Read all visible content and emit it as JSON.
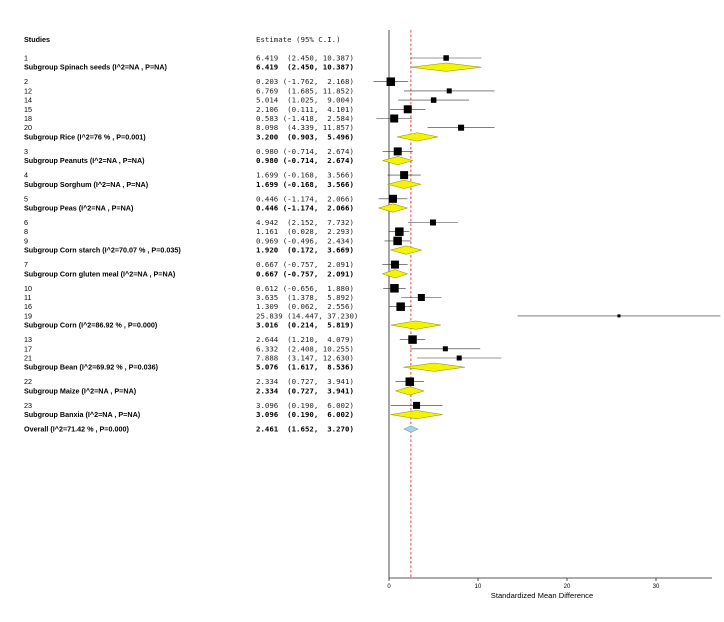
{
  "header": {
    "studies_label": "Studies",
    "estimate_label": "Estimate (95% C.I.)"
  },
  "chart_data": {
    "type": "forest",
    "xlabel": "Standardized Mean Difference",
    "xlim": [
      0,
      30
    ],
    "xticks": [
      0,
      10,
      20,
      30
    ],
    "xtick_labels": [
      "0",
      "10",
      "20",
      "30"
    ],
    "null_line": 0,
    "pooled_line": 2.461,
    "colors": {
      "square": "#000000",
      "diamond_fill": "#f4f400",
      "diamond_stroke": "#8a8a00",
      "overall_fill": "#a9d3e6",
      "overall_stroke": "#5f8ea3",
      "pooled_line": "#e01818"
    },
    "rows": [
      {
        "type": "study",
        "label": "1",
        "est": 6.419,
        "lo": 2.45,
        "hi": 10.387,
        "text": "6.419  (2.450, 10.387)",
        "size": 5.5
      },
      {
        "type": "subgroup",
        "label": "Subgroup Spinach seeds (I^2=NA , P=NA)",
        "est": 6.419,
        "lo": 2.45,
        "hi": 10.387,
        "text": "6.419  (2.450, 10.387)"
      },
      {
        "type": "gap"
      },
      {
        "type": "study",
        "label": "2",
        "est": 0.203,
        "lo": -1.762,
        "hi": 2.168,
        "text": "0.203 (-1.762,  2.168)",
        "size": 8.5
      },
      {
        "type": "study",
        "label": "12",
        "est": 6.769,
        "lo": 1.685,
        "hi": 11.852,
        "text": "6.769  (1.685, 11.852)",
        "size": 5
      },
      {
        "type": "study",
        "label": "14",
        "est": 5.014,
        "lo": 1.025,
        "hi": 9.004,
        "text": "5.014  (1.025,  9.004)",
        "size": 5.5
      },
      {
        "type": "study",
        "label": "15",
        "est": 2.106,
        "lo": 0.111,
        "hi": 4.101,
        "text": "2.106  (0.111,  4.101)",
        "size": 8
      },
      {
        "type": "study",
        "label": "18",
        "est": 0.583,
        "lo": -1.418,
        "hi": 2.584,
        "text": "0.583 (-1.418,  2.584)",
        "size": 8
      },
      {
        "type": "study",
        "label": "20",
        "est": 8.098,
        "lo": 4.339,
        "hi": 11.857,
        "text": "8.098  (4.339, 11.857)",
        "size": 6
      },
      {
        "type": "subgroup",
        "label": "Subgroup Rice (I^2=76 % , P=0.001)",
        "est": 3.2,
        "lo": 0.903,
        "hi": 5.496,
        "text": "3.200  (0.903,  5.496)"
      },
      {
        "type": "gap"
      },
      {
        "type": "study",
        "label": "3",
        "est": 0.98,
        "lo": -0.714,
        "hi": 2.674,
        "text": "0.980 (-0.714,  2.674)",
        "size": 8
      },
      {
        "type": "subgroup",
        "label": "Subgroup Peanuts (I^2=NA , P=NA)",
        "est": 0.98,
        "lo": -0.714,
        "hi": 2.674,
        "text": "0.980 (-0.714,  2.674)"
      },
      {
        "type": "gap"
      },
      {
        "type": "study",
        "label": "4",
        "est": 1.699,
        "lo": -0.168,
        "hi": 3.566,
        "text": "1.699 (-0.168,  3.566)",
        "size": 8
      },
      {
        "type": "subgroup",
        "label": "Subgroup Sorghum (I^2=NA , P=NA)",
        "est": 1.699,
        "lo": -0.168,
        "hi": 3.566,
        "text": "1.699 (-0.168,  3.566)"
      },
      {
        "type": "gap"
      },
      {
        "type": "study",
        "label": "5",
        "est": 0.446,
        "lo": -1.174,
        "hi": 2.066,
        "text": "0.446 (-1.174,  2.066)",
        "size": 8
      },
      {
        "type": "subgroup",
        "label": "Subgroup Peas (I^2=NA , P=NA)",
        "est": 0.446,
        "lo": -1.174,
        "hi": 2.066,
        "text": "0.446 (-1.174,  2.066)"
      },
      {
        "type": "gap"
      },
      {
        "type": "study",
        "label": "6",
        "est": 4.942,
        "lo": 2.152,
        "hi": 7.732,
        "text": "4.942  (2.152,  7.732)",
        "size": 6
      },
      {
        "type": "study",
        "label": "8",
        "est": 1.161,
        "lo": 0.028,
        "hi": 2.293,
        "text": "1.161  (0.028,  2.293)",
        "size": 8.5
      },
      {
        "type": "study",
        "label": "9",
        "est": 0.969,
        "lo": -0.496,
        "hi": 2.434,
        "text": "0.969 (-0.496,  2.434)",
        "size": 8.5
      },
      {
        "type": "subgroup",
        "label": "Subgroup Corn starch (I^2=70.07 % , P=0.035)",
        "est": 1.92,
        "lo": 0.172,
        "hi": 3.669,
        "text": "1.920  (0.172,  3.669)"
      },
      {
        "type": "gap"
      },
      {
        "type": "study",
        "label": "7",
        "est": 0.667,
        "lo": -0.757,
        "hi": 2.091,
        "text": "0.667 (-0.757,  2.091)",
        "size": 8
      },
      {
        "type": "subgroup",
        "label": "Subgroup Corn gluten meal (I^2=NA , P=NA)",
        "est": 0.667,
        "lo": -0.757,
        "hi": 2.091,
        "text": "0.667 (-0.757,  2.091)"
      },
      {
        "type": "gap"
      },
      {
        "type": "study",
        "label": "10",
        "est": 0.612,
        "lo": -0.656,
        "hi": 1.88,
        "text": "0.612 (-0.656,  1.880)",
        "size": 8.5
      },
      {
        "type": "study",
        "label": "11",
        "est": 3.635,
        "lo": 1.378,
        "hi": 5.892,
        "text": "3.635  (1.378,  5.892)",
        "size": 7
      },
      {
        "type": "study",
        "label": "16",
        "est": 1.309,
        "lo": 0.062,
        "hi": 2.556,
        "text": "1.309  (0.062,  2.556)",
        "size": 8.5
      },
      {
        "type": "study",
        "label": "19",
        "est": 25.839,
        "lo": 14.447,
        "hi": 37.23,
        "text": "25.839 (14.447, 37.230)",
        "size": 3
      },
      {
        "type": "subgroup",
        "label": "Subgroup Corn (I^2=86.92 % , P=0.000)",
        "est": 3.016,
        "lo": 0.214,
        "hi": 5.819,
        "text": "3.016  (0.214,  5.819)"
      },
      {
        "type": "gap"
      },
      {
        "type": "study",
        "label": "13",
        "est": 2.644,
        "lo": 1.21,
        "hi": 4.079,
        "text": "2.644  (1.210,  4.079)",
        "size": 8.5
      },
      {
        "type": "study",
        "label": "17",
        "est": 6.332,
        "lo": 2.408,
        "hi": 10.255,
        "text": "6.332  (2.408, 10.255)",
        "size": 5
      },
      {
        "type": "study",
        "label": "21",
        "est": 7.888,
        "lo": 3.147,
        "hi": 12.63,
        "text": "7.888  (3.147, 12.630)",
        "size": 5
      },
      {
        "type": "subgroup",
        "label": "Subgroup Bean (I^2=69.92 % , P=0.036)",
        "est": 5.076,
        "lo": 1.617,
        "hi": 8.536,
        "text": "5.076  (1.617,  8.536)"
      },
      {
        "type": "gap"
      },
      {
        "type": "study",
        "label": "22",
        "est": 2.334,
        "lo": 0.727,
        "hi": 3.941,
        "text": "2.334  (0.727,  3.941)",
        "size": 8.5
      },
      {
        "type": "subgroup",
        "label": "Subgroup Maize (I^2=NA , P=NA)",
        "est": 2.334,
        "lo": 0.727,
        "hi": 3.941,
        "text": "2.334  (0.727,  3.941)"
      },
      {
        "type": "gap"
      },
      {
        "type": "study",
        "label": "23",
        "est": 3.096,
        "lo": 0.19,
        "hi": 6.002,
        "text": "3.096  (0.190,  6.002)",
        "size": 7
      },
      {
        "type": "subgroup",
        "label": "Subgroup Banxia (I^2=NA , P=NA)",
        "est": 3.096,
        "lo": 0.19,
        "hi": 6.002,
        "text": "3.096  (0.190,  6.002)"
      },
      {
        "type": "gap"
      },
      {
        "type": "overall",
        "label": "Overall (I^2=71.42 % , P=0.000)",
        "est": 2.461,
        "lo": 1.652,
        "hi": 3.27,
        "text": "2.461  (1.652,  3.270)"
      }
    ]
  }
}
